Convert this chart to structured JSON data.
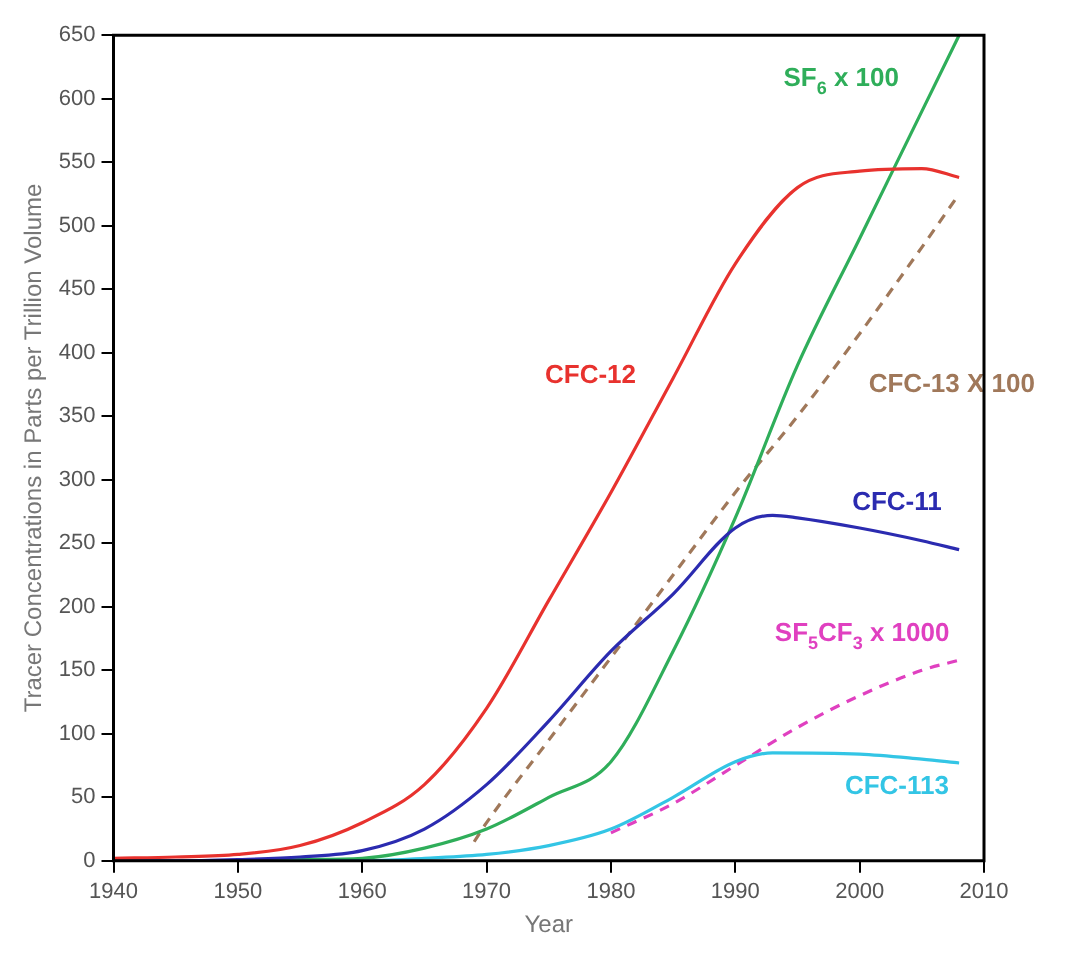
{
  "chart_data": {
    "type": "line",
    "xlabel": "Year",
    "ylabel": "Tracer Concentrations in Parts per Trillion Volume",
    "xlim": [
      1940,
      2010
    ],
    "xticks": [
      1940,
      1950,
      1960,
      1970,
      1980,
      1990,
      2000,
      2010
    ],
    "ylim": [
      0,
      650
    ],
    "yticks": [
      0,
      50,
      100,
      150,
      200,
      250,
      300,
      350,
      400,
      450,
      500,
      550,
      600,
      650
    ],
    "grid": false,
    "legend": false,
    "marker": "none",
    "series": [
      {
        "name": "CFC-12",
        "color": "#e8322e",
        "line_style": "solid",
        "x": [
          1940,
          1945,
          1950,
          1955,
          1960,
          1965,
          1970,
          1975,
          1980,
          1985,
          1990,
          1995,
          2000,
          2005,
          2008
        ],
        "values": [
          2,
          3,
          5,
          12,
          30,
          60,
          120,
          205,
          290,
          380,
          470,
          530,
          543,
          545,
          538
        ]
      },
      {
        "name": "CFC-11",
        "color": "#2b2bb0",
        "line_style": "solid",
        "x": [
          1940,
          1945,
          1950,
          1955,
          1960,
          1965,
          1970,
          1975,
          1980,
          1985,
          1990,
          1993,
          1995,
          2000,
          2005,
          2008
        ],
        "values": [
          0,
          0,
          1,
          3,
          8,
          25,
          60,
          110,
          165,
          210,
          262,
          272,
          270,
          262,
          252,
          245
        ]
      },
      {
        "name": "CFC-113",
        "color": "#33c5e5",
        "line_style": "solid",
        "x": [
          1940,
          1950,
          1960,
          1965,
          1970,
          1975,
          1980,
          1985,
          1990,
          1993,
          2000,
          2005,
          2008
        ],
        "values": [
          0,
          0,
          0,
          2,
          5,
          12,
          25,
          50,
          78,
          85,
          84,
          80,
          77
        ]
      },
      {
        "name": "SF$_{6}$ x 100",
        "color": "#2fae5a",
        "line_style": "solid",
        "x": [
          1950,
          1955,
          1960,
          1965,
          1970,
          1975,
          1980,
          1985,
          1990,
          1995,
          2000,
          2005,
          2008
        ],
        "values": [
          0,
          1,
          2,
          10,
          25,
          50,
          78,
          165,
          270,
          390,
          490,
          590,
          650
        ]
      },
      {
        "name": "CFC-13 X 100",
        "color": "#a0785a",
        "line_style": "dashed",
        "x": [
          1969,
          1970,
          1975,
          1980,
          1985,
          1990,
          1995,
          2000,
          2005,
          2008
        ],
        "values": [
          15,
          30,
          95,
          160,
          225,
          290,
          350,
          415,
          483,
          525
        ]
      },
      {
        "name": "SF$_{5}$CF$_{3}$ x 1000",
        "color": "#e040c0",
        "line_style": "dashed",
        "x": [
          1980,
          1985,
          1990,
          1995,
          2000,
          2005,
          2008
        ],
        "values": [
          22,
          45,
          75,
          105,
          130,
          150,
          158
        ]
      }
    ]
  }
}
